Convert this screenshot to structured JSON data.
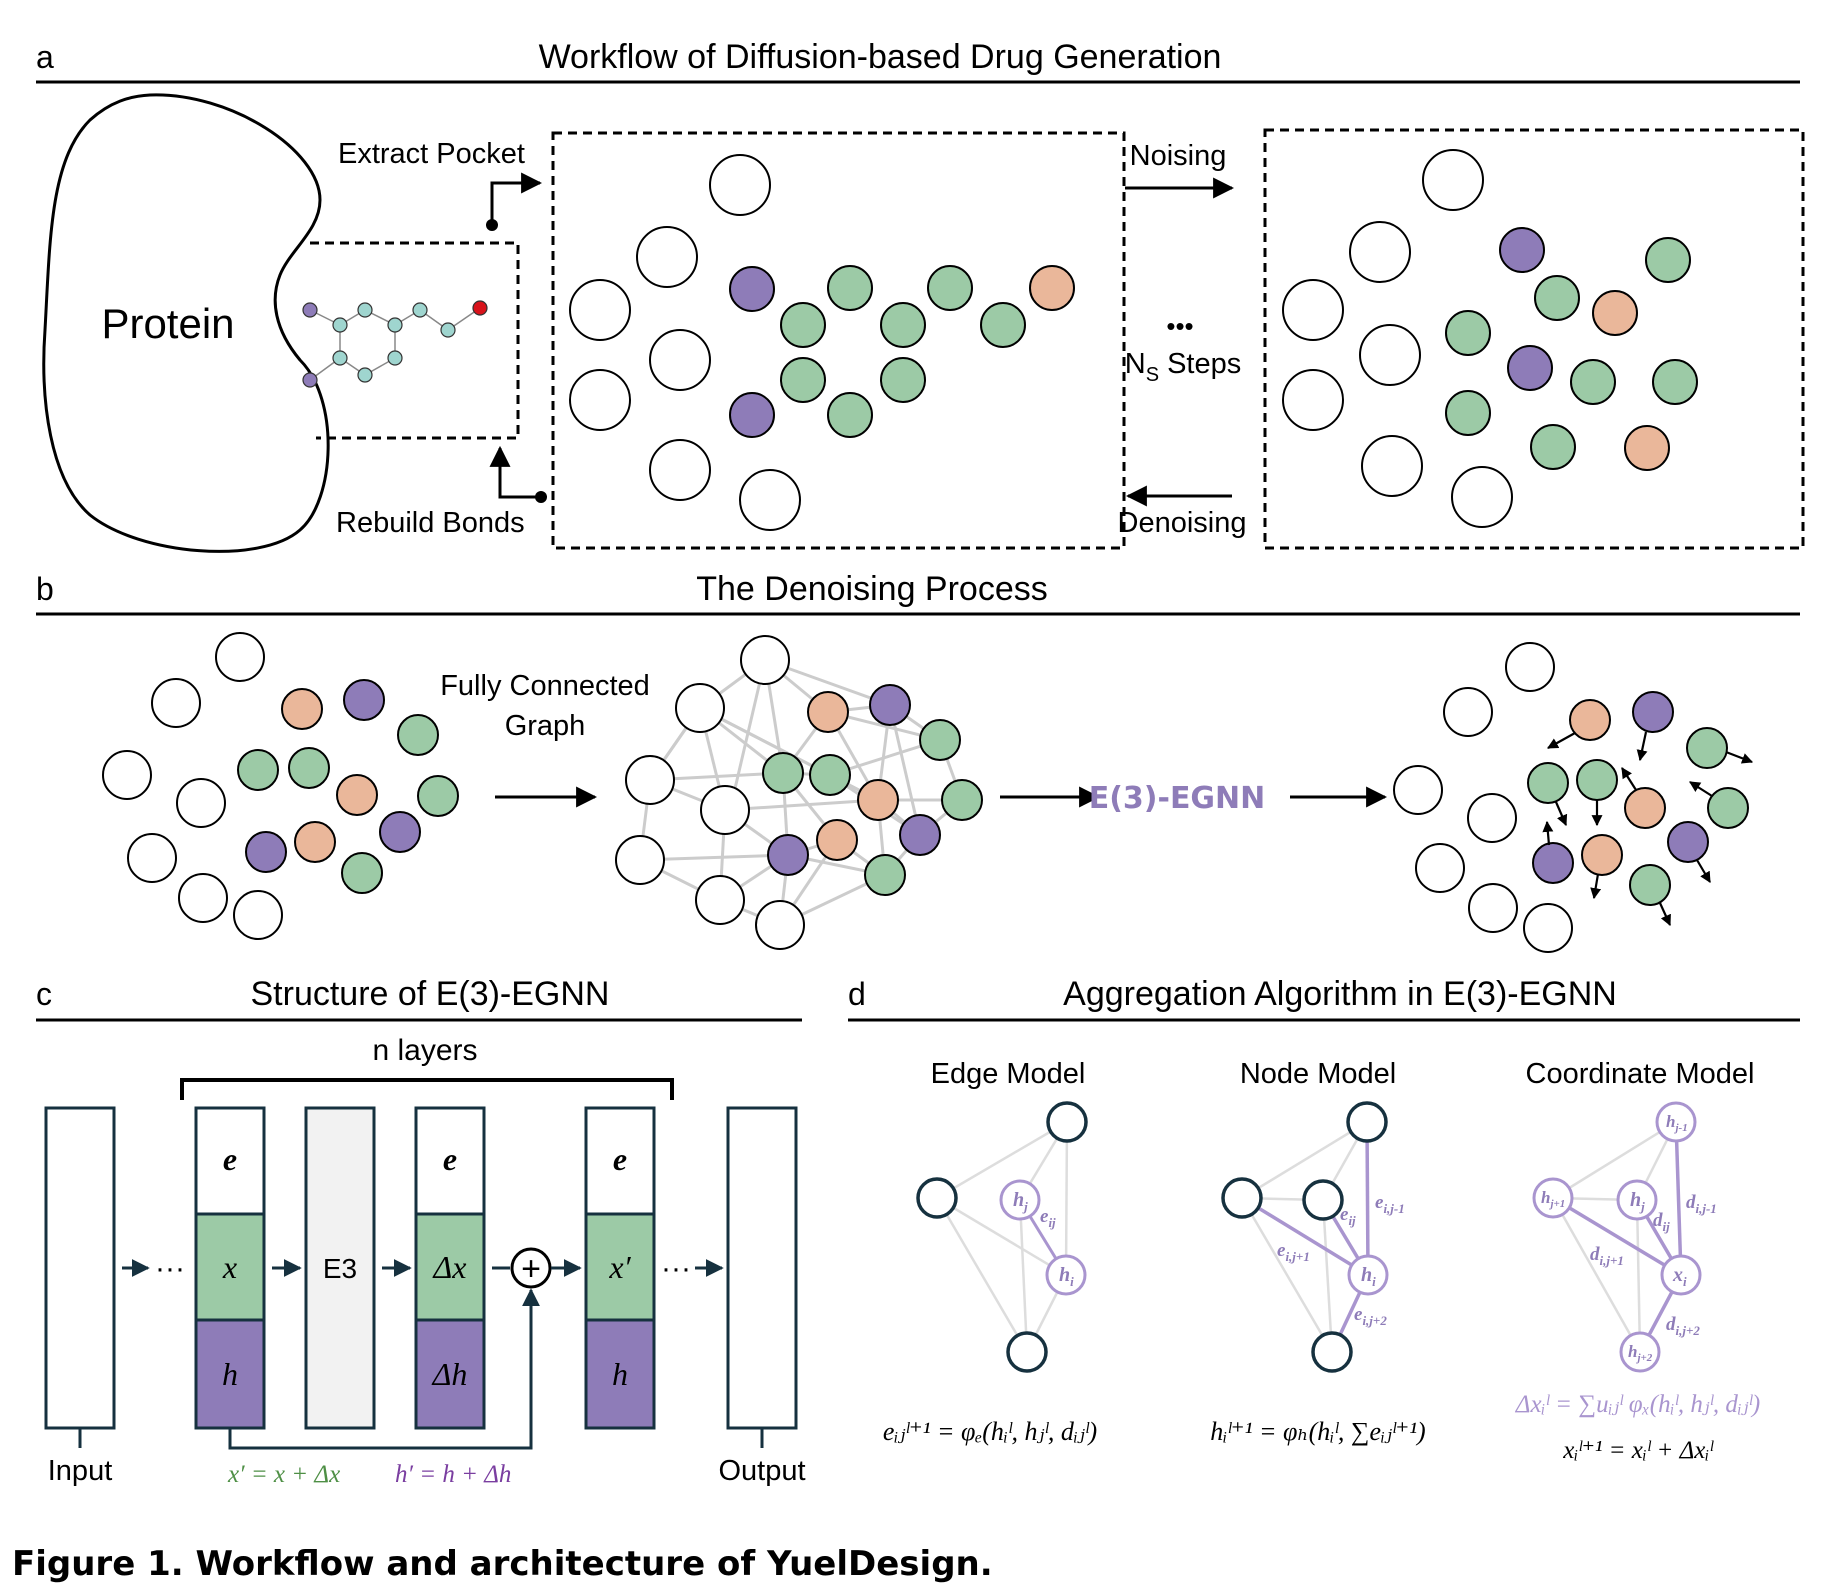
{
  "panel_a": {
    "letter": "a",
    "title": "Workflow of Diffusion-based Drug Generation",
    "protein_label": "Protein",
    "extract_label": "Extract Pocket",
    "rebuild_label": "Rebuild Bonds",
    "noising_label": "Noising",
    "denoising_label": "Denoising",
    "steps_dots": "•••",
    "steps_main": "N",
    "steps_sub": "S",
    "steps_tail": " Steps"
  },
  "panel_b": {
    "letter": "b",
    "title": "The Denoising Process",
    "graph_label_1": "Fully Connected",
    "graph_label_2": "Graph",
    "egnn_label": "E(3)-EGNN"
  },
  "panel_c": {
    "letter": "c",
    "title": "Structure of E(3)-EGNN",
    "layers_label": "n layers",
    "input_label": "Input",
    "output_label": "Output",
    "block_e": "e",
    "block_x": "x",
    "block_h": "h",
    "block_e3": "E3",
    "block_dx": "Δx",
    "block_dh": "Δh",
    "block_xprime": "x′",
    "plus": "+",
    "dots": "···",
    "formula_x": "x′ = x + Δx",
    "formula_h": "h′ = h + Δh"
  },
  "panel_d": {
    "letter": "d",
    "title": "Aggregation Algorithm in E(3)-EGNN",
    "edge_title": "Edge Model",
    "node_title": "Node Model",
    "coord_title": "Coordinate Model",
    "label_hj": "h",
    "label_hj_sub": "j",
    "label_hi": "h",
    "label_hi_sub": "i",
    "label_eij": "e",
    "label_eij_sub": "ij",
    "label_ei_j1": "e",
    "label_ei_j1_sub": "i,j-1",
    "label_ei_jp1": "e",
    "label_ei_jp1_sub": "i,j+1",
    "label_ei_jp2": "e",
    "label_ei_jp2_sub": "i,j+2",
    "label_hjm1_sub": "j-1",
    "label_hjp1_sub": "j+1",
    "label_hjp2_sub": "j+2",
    "label_xi": "x",
    "label_xi_sub": "i",
    "label_d": "d",
    "label_dij_sub": "ij",
    "label_di_j1_sub": "i,j-1",
    "label_di_jp1_sub": "i,j+1",
    "label_di_jp2_sub": "i,j+2",
    "eq_edge": "eᵢⱼˡ⁺¹ = φₑ(hᵢˡ, hⱼˡ, dᵢⱼˡ)",
    "eq_node": "hᵢˡ⁺¹ = φₕ(hᵢˡ, ∑eᵢⱼˡ⁺¹)",
    "eq_coord_1": "Δxᵢˡ = ∑uᵢⱼˡ φₓ(hᵢˡ, hⱼˡ, dᵢⱼˡ)",
    "eq_coord_2": "xᵢˡ⁺¹ = xᵢˡ + Δxᵢˡ"
  },
  "caption": "Figure 1. Workflow and architecture of YuelDesign.",
  "colors": {
    "purple": "#8e7cb8",
    "green": "#9ccaa6",
    "peach": "#eab79a",
    "ink": "#000000",
    "navy": "#16313f",
    "lavender": "#a995cf",
    "formula_green": "#4e8f45",
    "formula_purple": "#7a3ea0",
    "edge_gray": "#cccccc",
    "block_gray": "#f2f2f2",
    "teal": "#9fd5cf",
    "red": "#d8131b"
  }
}
